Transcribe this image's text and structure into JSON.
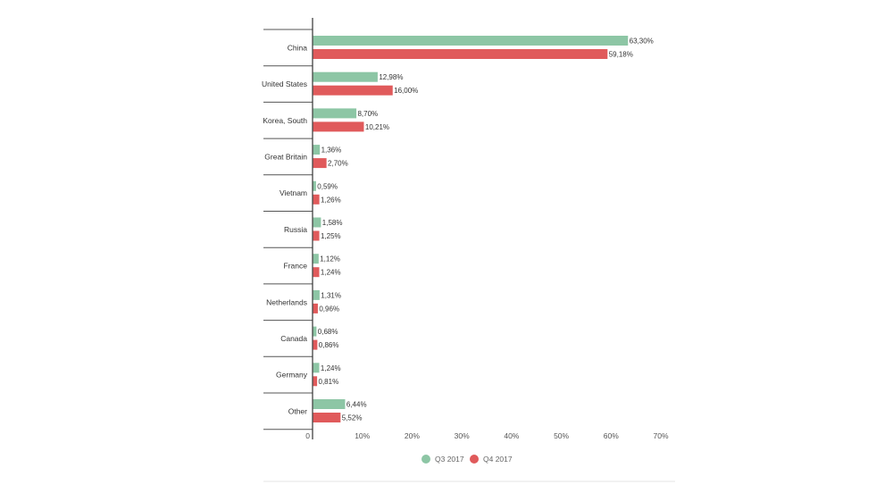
{
  "chart_data": {
    "type": "bar",
    "orientation": "horizontal",
    "categories": [
      "China",
      "United States",
      "Korea, South",
      "Great Britain",
      "Vietnam",
      "Russia",
      "France",
      "Netherlands",
      "Canada",
      "Germany",
      "Other"
    ],
    "series": [
      {
        "name": "Q3 2017",
        "color": "#8dc6a5",
        "values": [
          63.3,
          12.98,
          8.7,
          1.36,
          0.59,
          1.58,
          1.12,
          1.31,
          0.68,
          1.24,
          6.44
        ],
        "labels": [
          "63,30%",
          "12,98%",
          "8,70%",
          "1,36%",
          "0,59%",
          "1,58%",
          "1,12%",
          "1,31%",
          "0,68%",
          "1,24%",
          "6,44%"
        ]
      },
      {
        "name": "Q4 2017",
        "color": "#e05a5b",
        "values": [
          59.18,
          16.0,
          10.21,
          2.7,
          1.26,
          1.25,
          1.24,
          0.96,
          0.86,
          0.81,
          5.52
        ],
        "labels": [
          "59,18%",
          "16,00%",
          "10,21%",
          "2,70%",
          "1,26%",
          "1,25%",
          "1,24%",
          "0,96%",
          "0,86%",
          "0,81%",
          "5,52%"
        ]
      }
    ],
    "x_ticks": [
      0,
      10,
      20,
      30,
      40,
      50,
      60,
      70
    ],
    "x_tick_labels": [
      "0",
      "10%",
      "20%",
      "30%",
      "40%",
      "50%",
      "60%",
      "70%"
    ],
    "xlim": [
      0,
      70
    ],
    "legend_position": "bottom-center",
    "grid": false
  }
}
